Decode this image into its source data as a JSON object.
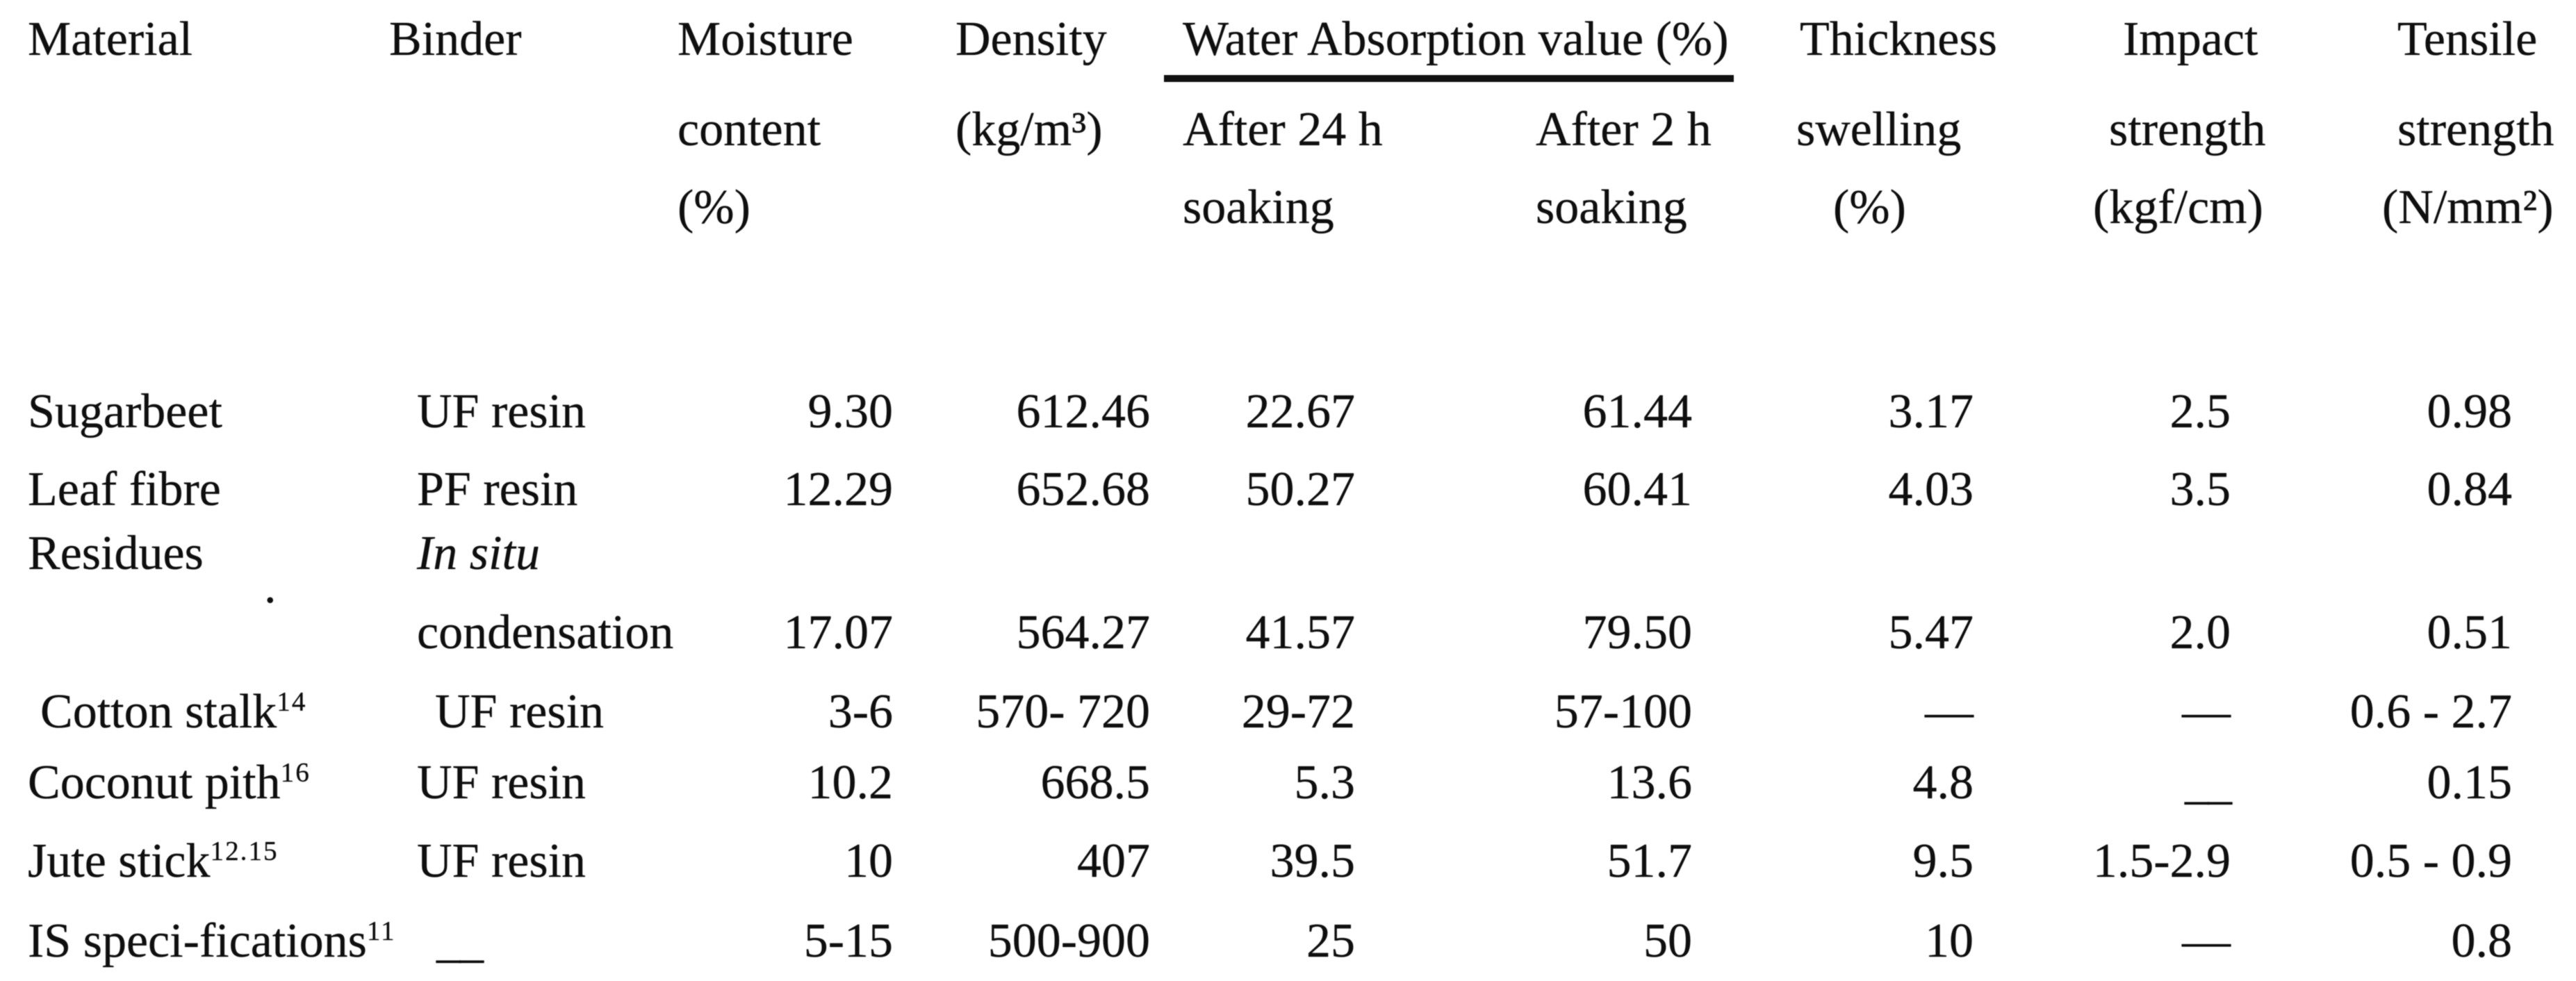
{
  "table": {
    "header": {
      "material": "Material",
      "binder": "Binder",
      "moisture": {
        "l1": "Moisture",
        "l2": "content",
        "l3": "(%)"
      },
      "density": {
        "l1": "Density",
        "l2": "(kg/m³)"
      },
      "water_absorption": {
        "group": "Water Absorption value (%)",
        "sub1": {
          "l1": "After 24 h",
          "l2": "soaking"
        },
        "sub2": {
          "l1": "After 2 h",
          "l2": "soaking"
        }
      },
      "thickness": {
        "l1": "Thickness",
        "l2": "swelling",
        "l3": "(%)"
      },
      "impact": {
        "l1": "Impact",
        "l2": "strength",
        "l3": "(kgf/cm)"
      },
      "tensile": {
        "l1": "Tensile",
        "l2": "strength",
        "l3": "(N/mm²)"
      }
    },
    "rows": [
      {
        "material": "Sugarbeet",
        "material_sup": "",
        "binder": "UF resin",
        "binder_style": "",
        "moisture": "9.30",
        "density": "612.46",
        "after24": "22.67",
        "after2": "61.44",
        "thickness": "3.17",
        "impact": "2.5",
        "tensile": "0.98"
      },
      {
        "material": "Leaf fibre",
        "material_sup": "",
        "binder": "PF resin",
        "binder_style": "",
        "moisture": "12.29",
        "density": "652.68",
        "after24": "50.27",
        "after2": "60.41",
        "thickness": "4.03",
        "impact": "3.5",
        "tensile": "0.84"
      },
      {
        "material": "Residues",
        "material_sup": "",
        "binder": "In situ",
        "binder_style": "italic",
        "moisture": "",
        "density": "",
        "after24": "",
        "after2": "",
        "thickness": "",
        "impact": "",
        "tensile": ""
      },
      {
        "material": "",
        "material_sup": "",
        "binder": "condensation",
        "binder_style": "",
        "moisture": "17.07",
        "density": "564.27",
        "after24": "41.57",
        "after2": "79.50",
        "thickness": "5.47",
        "impact": "2.0",
        "tensile": "0.51"
      },
      {
        "material": "Cotton stalk",
        "material_sup": "14",
        "binder": "UF resin",
        "binder_style": "",
        "moisture": "3-6",
        "density": "570- 720",
        "after24": "29-72",
        "after2": "57-100",
        "thickness": "—",
        "impact": "—",
        "tensile": "0.6 - 2.7"
      },
      {
        "material": "Coconut pith",
        "material_sup": "16",
        "binder": "UF resin",
        "binder_style": "",
        "moisture": "10.2",
        "density": "668.5",
        "after24": "5.3",
        "after2": "13.6",
        "thickness": "4.8",
        "impact": "__",
        "tensile": "0.15"
      },
      {
        "material": "Jute stick",
        "material_sup": "12.15",
        "binder": "UF resin",
        "binder_style": "",
        "moisture": "10",
        "density": "407",
        "after24": "39.5",
        "after2": "51.7",
        "thickness": "9.5",
        "impact": "1.5-2.9",
        "tensile": "0.5 - 0.9"
      },
      {
        "material": "IS speci-fications",
        "material_sup": "11",
        "binder": "__",
        "binder_style": "",
        "moisture": "5-15",
        "density": "500-900",
        "after24": "25",
        "after2": "50",
        "thickness": "10",
        "impact": "—",
        "tensile": "0.8"
      }
    ],
    "marks": {
      "stray_dot": "."
    }
  }
}
